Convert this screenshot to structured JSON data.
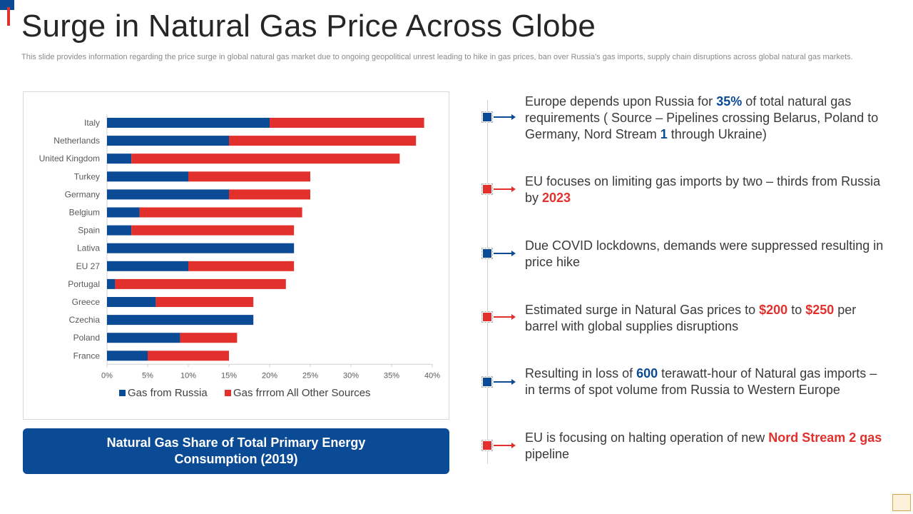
{
  "slide": {
    "title": "Surge in Natural Gas Price Across Globe",
    "subtitle": "This slide provides information regarding the price surge in global natural gas market due to ongoing geopolitical unrest leading to hike in gas prices, ban over Russia's gas imports, supply chain disruptions across global natural gas markets.",
    "chart_caption": "Natural Gas Share of Total Primary Energy Consumption (2019)"
  },
  "colors": {
    "russia": "#0b4a94",
    "other": "#e2302c"
  },
  "chart_data": {
    "type": "bar",
    "orientation": "horizontal",
    "stacked": true,
    "title": "Natural Gas Share of Total Primary Energy Consumption (2019)",
    "categories": [
      "Italy",
      "Netherlands",
      "United Kingdom",
      "Turkey",
      "Germany",
      "Belgium",
      "Spain",
      "Lativa",
      "EU 27",
      "Portugal",
      "Greece",
      "Czechia",
      "Poland",
      "France"
    ],
    "series": [
      {
        "name": "Gas from Russia",
        "color": "#0b4a94",
        "values": [
          20,
          15,
          3,
          10,
          15,
          4,
          3,
          23,
          10,
          1,
          6,
          18,
          9,
          5
        ]
      },
      {
        "name": "Gas frrrom All Other Sources",
        "color": "#e2302c",
        "values": [
          19,
          23,
          33,
          15,
          10,
          20,
          20,
          0,
          13,
          21,
          12,
          0,
          7,
          10
        ]
      }
    ],
    "xlim": [
      0,
      40
    ],
    "xticks": [
      0,
      5,
      10,
      15,
      20,
      25,
      30,
      35,
      40
    ],
    "xtick_labels": [
      "0%",
      "5%",
      "10%",
      "15%",
      "20%",
      "25%",
      "30%",
      "35%",
      "40%"
    ],
    "legend_position": "bottom",
    "grid": false
  },
  "points": [
    {
      "color": "blue",
      "parts": [
        {
          "text": "Europe depends upon Russia for "
        },
        {
          "text": "35%",
          "style": "hl-blue"
        },
        {
          "text": " of total natural gas requirements ( Source – Pipelines crossing Belarus, Poland to Germany, Nord Stream "
        },
        {
          "text": "1",
          "style": "hl-blue"
        },
        {
          "text": " through Ukraine)"
        }
      ]
    },
    {
      "color": "red",
      "parts": [
        {
          "text": "EU focuses on limiting gas imports by two – thirds from Russia by "
        },
        {
          "text": "2023",
          "style": "hl-red"
        }
      ]
    },
    {
      "color": "blue",
      "parts": [
        {
          "text": "Due COVID lockdowns, demands were suppressed resulting in price hike"
        }
      ]
    },
    {
      "color": "red",
      "parts": [
        {
          "text": "Estimated surge in Natural Gas prices to "
        },
        {
          "text": "$200",
          "style": "hl-red"
        },
        {
          "text": " to "
        },
        {
          "text": "$250",
          "style": "hl-red"
        },
        {
          "text": " per barrel with global supplies disruptions"
        }
      ]
    },
    {
      "color": "blue",
      "parts": [
        {
          "text": "Resulting in loss of "
        },
        {
          "text": "600",
          "style": "hl-blue"
        },
        {
          "text": " terawatt-hour of Natural gas imports – in terms of spot volume from Russia to Western Europe"
        }
      ]
    },
    {
      "color": "red",
      "parts": [
        {
          "text": "EU is focusing on halting operation of new "
        },
        {
          "text": "Nord Stream 2 gas",
          "style": "hl-red"
        },
        {
          "text": " pipeline"
        }
      ]
    }
  ]
}
